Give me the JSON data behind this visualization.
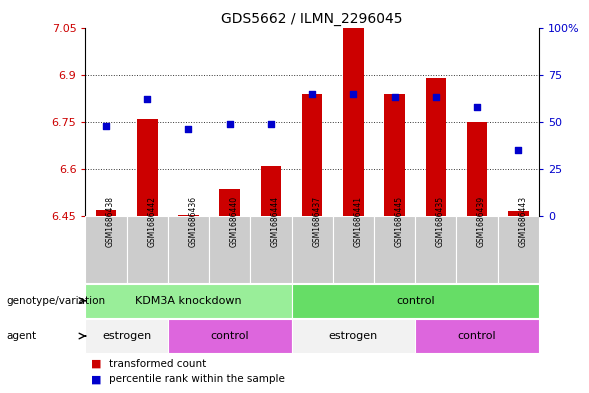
{
  "title": "GDS5662 / ILMN_2296045",
  "samples": [
    "GSM1686438",
    "GSM1686442",
    "GSM1686436",
    "GSM1686440",
    "GSM1686444",
    "GSM1686437",
    "GSM1686441",
    "GSM1686445",
    "GSM1686435",
    "GSM1686439",
    "GSM1686443"
  ],
  "transformed_count": [
    6.47,
    6.76,
    6.455,
    6.535,
    6.61,
    6.84,
    7.05,
    6.84,
    6.89,
    6.75,
    6.465
  ],
  "percentile_rank": [
    48,
    62,
    46,
    49,
    49,
    65,
    65,
    63,
    63,
    58,
    35
  ],
  "ylim_left": [
    6.45,
    7.05
  ],
  "yticks_left": [
    6.45,
    6.6,
    6.75,
    6.9,
    7.05
  ],
  "ytick_labels_left": [
    "6.45",
    "6.6",
    "6.75",
    "6.9",
    "7.05"
  ],
  "ytick_labels_right": [
    "0",
    "25",
    "50",
    "75",
    "100%"
  ],
  "yticks_right_pct": [
    0,
    25,
    50,
    75,
    100
  ],
  "bar_color": "#cc0000",
  "dot_color": "#0000cc",
  "bar_baseline": 6.45,
  "genotype_groups": [
    {
      "label": "KDM3A knockdown",
      "start": 0,
      "end": 5,
      "color": "#99ee99"
    },
    {
      "label": "control",
      "start": 5,
      "end": 11,
      "color": "#66dd66"
    }
  ],
  "agent_groups": [
    {
      "label": "estrogen",
      "start": 0,
      "end": 2,
      "color": "#f2f2f2"
    },
    {
      "label": "control",
      "start": 2,
      "end": 5,
      "color": "#dd66dd"
    },
    {
      "label": "estrogen",
      "start": 5,
      "end": 8,
      "color": "#f2f2f2"
    },
    {
      "label": "control",
      "start": 8,
      "end": 11,
      "color": "#dd66dd"
    }
  ],
  "legend_labels": [
    "transformed count",
    "percentile rank within the sample"
  ],
  "legend_colors": [
    "#cc0000",
    "#0000cc"
  ],
  "gridline_color": "#333333",
  "sample_bg_color": "#cccccc",
  "left_axis_color": "#cc0000",
  "right_axis_color": "#0000cc",
  "left_label": "genotype/variation",
  "agent_label": "agent"
}
